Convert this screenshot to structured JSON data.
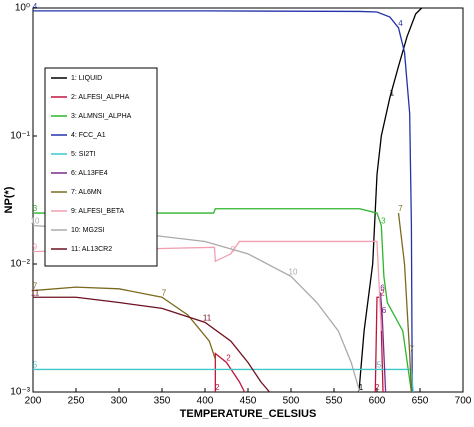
{
  "chart_data": {
    "type": "line",
    "xlabel": "TEMPERATURE_CELSIUS",
    "ylabel": "NP(*)",
    "xlim": [
      200,
      700
    ],
    "xticks": [
      200,
      250,
      300,
      350,
      400,
      450,
      500,
      550,
      600,
      650,
      700
    ],
    "ylim": [
      0.001,
      1
    ],
    "log_y": true,
    "yticks": [
      {
        "value": 1,
        "label": "10⁰"
      },
      {
        "value": 0.1,
        "label": "10⁻¹"
      },
      {
        "value": 0.01,
        "label": "10⁻²"
      },
      {
        "value": 0.001,
        "label": "10⁻³"
      }
    ],
    "legend": "upper left",
    "series": [
      {
        "name": "1: LIQUID",
        "curve_label": "1",
        "color": "#000000",
        "x": [
          579,
          585,
          595,
          600,
          605,
          615,
          625,
          635,
          645,
          652
        ],
        "values": [
          0.001,
          0.003,
          0.01,
          0.05,
          0.1,
          0.2,
          0.35,
          0.6,
          0.9,
          1.0
        ]
      },
      {
        "name": "2: ALFESI_ALPHA",
        "curve_label": "2",
        "color": "#c0143c",
        "x": [
          412,
          412,
          425,
          440,
          446,
          598,
          598,
          600,
          604,
          607
        ],
        "values": [
          0.001,
          0.002,
          0.0017,
          0.0012,
          0.001,
          null,
          0.001,
          0.0055,
          0.0055,
          0.001
        ]
      },
      {
        "name": "3: ALMNSI_ALPHA",
        "curve_label": "3",
        "color": "#2db52d",
        "x": [
          200,
          410,
          412,
          580,
          600,
          605,
          608,
          612,
          630,
          640
        ],
        "values": [
          0.025,
          0.025,
          0.027,
          0.027,
          0.025,
          0.02,
          0.008,
          0.005,
          0.003,
          0.001
        ]
      },
      {
        "name": "4: FCC_A1",
        "curve_label": "4",
        "color": "#2233aa",
        "x": [
          200,
          400,
          580,
          600,
          615,
          625,
          632,
          638,
          640,
          641
        ],
        "values": [
          0.95,
          0.95,
          0.94,
          0.93,
          0.85,
          0.7,
          0.45,
          0.15,
          0.02,
          0.001
        ]
      },
      {
        "name": "5: SI2TI",
        "curve_label": "5",
        "color": "#3cc8c8",
        "x": [
          200,
          400,
          600,
          640,
          642
        ],
        "values": [
          0.0015,
          0.0015,
          0.0015,
          0.0015,
          0.001
        ]
      },
      {
        "name": "6: AL13FE4",
        "curve_label": "6",
        "color": "#7a2a8a",
        "x": [
          604,
          606,
          610
        ],
        "values": [
          0.006,
          0.004,
          0.001
        ]
      },
      {
        "name": "7: AL6MN",
        "curve_label": "7",
        "color": "#7a6a1e",
        "x": [
          200,
          250,
          300,
          350,
          380,
          405,
          412,
          600,
          625,
          632,
          638,
          640
        ],
        "values": [
          0.0062,
          0.0066,
          0.0064,
          0.0055,
          0.004,
          0.0025,
          0.0018,
          null,
          0.025,
          0.01,
          0.002,
          0.001
        ]
      },
      {
        "name": "9: ALFESI_BETA",
        "curve_label": "9",
        "color": "#f0a0b0",
        "x": [
          200,
          300,
          411,
          412,
          430,
          440,
          600,
          605
        ],
        "values": [
          0.0125,
          0.013,
          0.0135,
          0.0105,
          0.012,
          0.015,
          0.015,
          0.003
        ]
      },
      {
        "name": "10: MG2SI",
        "curve_label": "10",
        "color": "#aaaaaa",
        "x": [
          200,
          300,
          400,
          450,
          500,
          530,
          555,
          570,
          580
        ],
        "values": [
          0.02,
          0.018,
          0.015,
          0.012,
          0.008,
          0.005,
          0.003,
          0.0017,
          0.001
        ]
      },
      {
        "name": "11: AL13CR2",
        "curve_label": "11",
        "color": "#6e1020",
        "x": [
          200,
          250,
          300,
          350,
          400,
          430,
          450,
          465,
          475
        ],
        "values": [
          0.0055,
          0.0055,
          0.005,
          0.0045,
          0.0035,
          0.0025,
          0.0017,
          0.0012,
          0.001
        ]
      }
    ]
  }
}
